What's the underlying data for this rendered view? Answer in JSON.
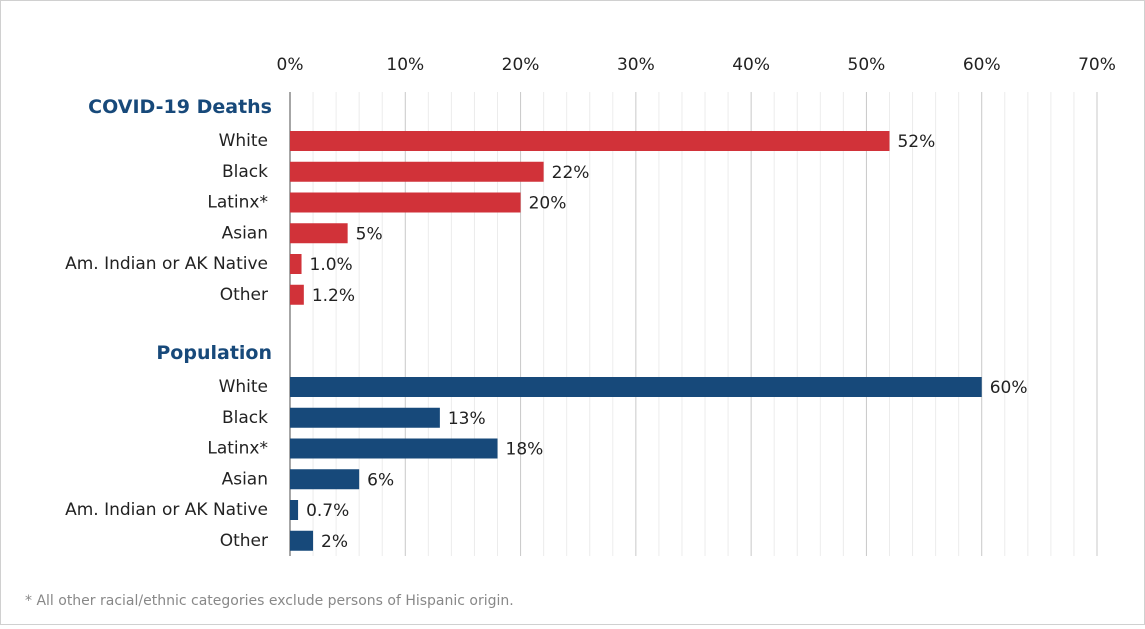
{
  "chart_data": {
    "type": "bar",
    "orientation": "horizontal",
    "xlim": [
      0,
      70
    ],
    "xticks": [
      {
        "value": 0,
        "label": "0%"
      },
      {
        "value": 10,
        "label": "10%"
      },
      {
        "value": 20,
        "label": "20%"
      },
      {
        "value": 30,
        "label": "30%"
      },
      {
        "value": 40,
        "label": "40%"
      },
      {
        "value": 50,
        "label": "50%"
      },
      {
        "value": 60,
        "label": "60%"
      },
      {
        "value": 70,
        "label": "70%"
      }
    ],
    "xticks_minor": [
      2,
      4,
      6,
      8,
      12,
      14,
      16,
      18,
      22,
      24,
      26,
      28,
      32,
      34,
      36,
      38,
      42,
      44,
      46,
      48,
      52,
      54,
      56,
      58,
      62,
      64,
      66,
      68
    ],
    "grid": true,
    "groups": [
      {
        "name": "COVID-19 Deaths",
        "color": "#d13239",
        "categories": [
          "White",
          "Black",
          "Latinx*",
          "Asian",
          "Am. Indian or AK Native",
          "Other"
        ],
        "values": [
          52,
          22,
          20,
          5,
          1.0,
          1.2
        ],
        "value_labels": [
          "52%",
          "22%",
          "20%",
          "5%",
          "1.0%",
          "1.2%"
        ]
      },
      {
        "name": "Population",
        "color": "#17497a",
        "categories": [
          "White",
          "Black",
          "Latinx*",
          "Asian",
          "Am. Indian or AK Native",
          "Other"
        ],
        "values": [
          60,
          13,
          18,
          6,
          0.7,
          2
        ],
        "value_labels": [
          "60%",
          "13%",
          "18%",
          "6%",
          "0.7%",
          "2%"
        ]
      }
    ],
    "note": "* All other racial/ethnic categories exclude persons of Hispanic origin."
  }
}
